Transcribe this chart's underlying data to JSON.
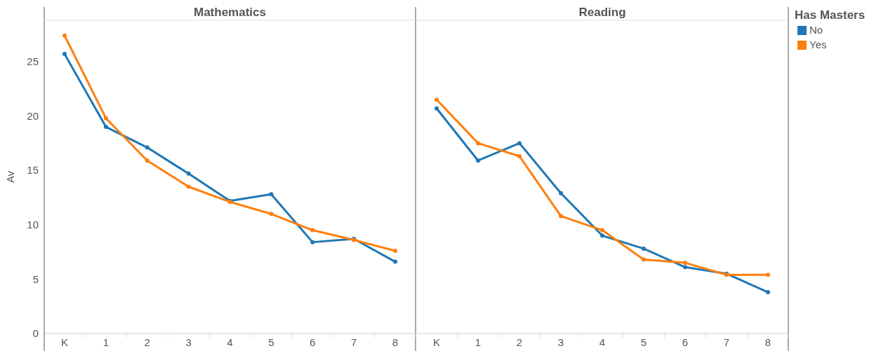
{
  "chart_data": [
    {
      "type": "line",
      "title": "Mathematics",
      "ylabel": "Av",
      "categories": [
        "K",
        "1",
        "2",
        "3",
        "4",
        "5",
        "6",
        "7",
        "8"
      ],
      "ylim": [
        0,
        28.8
      ],
      "yticks": [
        0,
        5,
        10,
        15,
        20,
        25
      ],
      "marker": "circle",
      "grid": false,
      "series": [
        {
          "color": "#1f77b4",
          "values": [
            25.7,
            19.0,
            17.1,
            14.7,
            12.2,
            12.8,
            8.4,
            8.7,
            6.6
          ]
        },
        {
          "color": "#ff7f0e",
          "values": [
            27.4,
            19.8,
            15.9,
            13.5,
            12.1,
            11.0,
            9.5,
            8.6,
            7.6
          ]
        }
      ]
    },
    {
      "type": "line",
      "title": "Reading",
      "categories": [
        "K",
        "1",
        "2",
        "3",
        "4",
        "5",
        "6",
        "7",
        "8"
      ],
      "ylim": [
        0,
        28.8
      ],
      "yticks": [
        0,
        5,
        10,
        15,
        20,
        25
      ],
      "tick_labels": "x",
      "marker": "circle",
      "grid": false,
      "legend": "right",
      "legend_title": "Has Masters",
      "series": [
        {
          "name": "No",
          "color": "#1f77b4",
          "values": [
            20.7,
            15.9,
            17.5,
            12.9,
            9.0,
            7.8,
            6.1,
            5.5,
            3.8
          ]
        },
        {
          "name": "Yes",
          "color": "#ff7f0e",
          "values": [
            21.5,
            17.5,
            16.3,
            10.8,
            9.5,
            6.8,
            6.5,
            5.4,
            5.4
          ]
        }
      ]
    }
  ]
}
